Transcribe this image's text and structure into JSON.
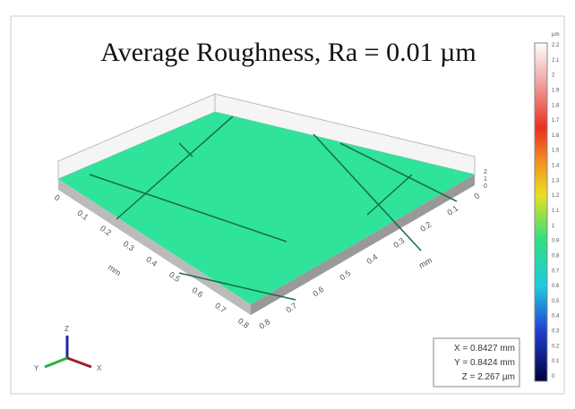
{
  "title": "Average Roughness, Ra = 0.01 µm",
  "colorbar": {
    "unit": "µm",
    "ticks": [
      2.2,
      2.1,
      2,
      1.9,
      1.8,
      1.7,
      1.6,
      1.5,
      1.4,
      1.3,
      1.2,
      1.1,
      1,
      0.9,
      0.8,
      0.7,
      0.6,
      0.5,
      0.4,
      0.3,
      0.2,
      0.1,
      0
    ]
  },
  "left_axis": {
    "label": "mm",
    "ticks": [
      0,
      0.1,
      0.2,
      0.3,
      0.4,
      0.5,
      0.6,
      0.7,
      0.8
    ]
  },
  "right_axis": {
    "label": "mm",
    "ticks": [
      0.8,
      0.7,
      0.6,
      0.5,
      0.4,
      0.3,
      0.2,
      0.1,
      0
    ]
  },
  "z_axis": {
    "ticks": [
      0,
      1,
      2
    ]
  },
  "triad": {
    "z": "Z",
    "x": "X",
    "y": "Y"
  },
  "readout": [
    "X = 0.8427 mm",
    "Y = 0.8424 mm",
    "Z = 2.267 µm"
  ]
}
